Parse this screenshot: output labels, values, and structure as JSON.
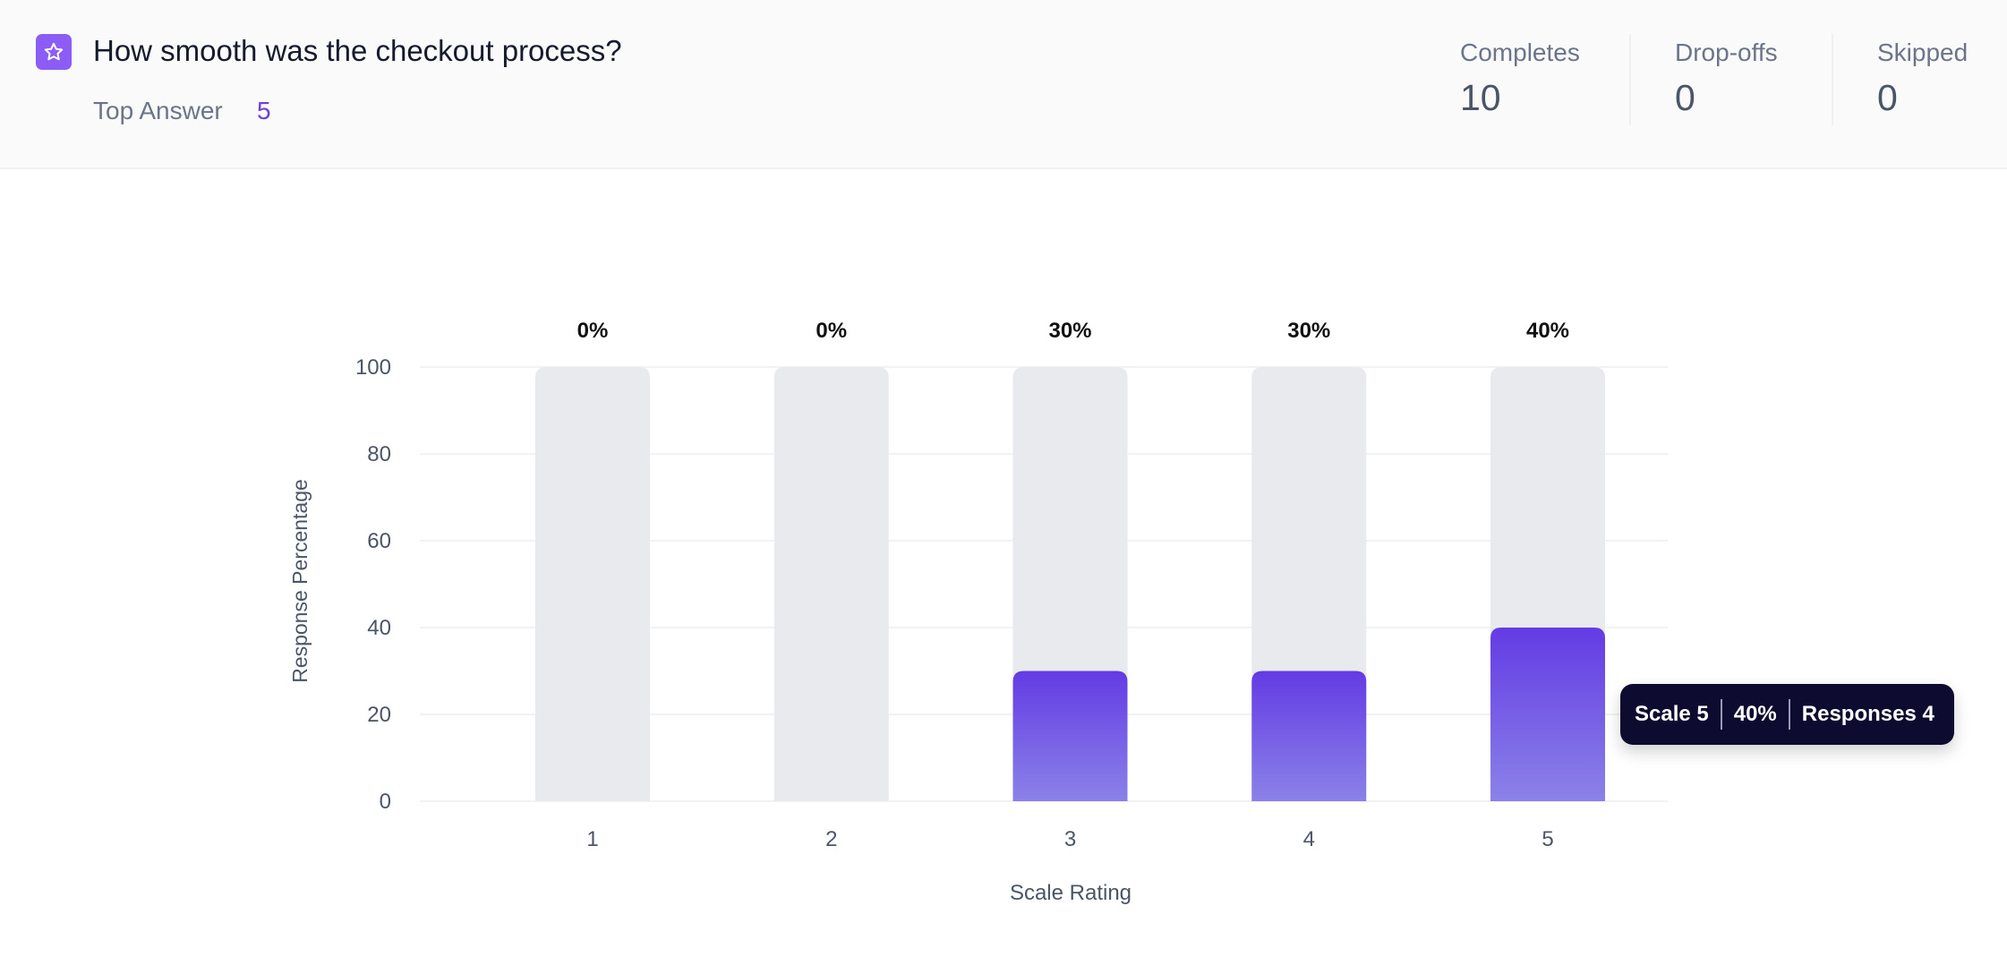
{
  "header": {
    "icon": "star-icon",
    "question": "How smooth was the checkout process?",
    "top_answer_label": "Top Answer",
    "top_answer_value": "5",
    "stats": [
      {
        "label": "Completes",
        "value": "10"
      },
      {
        "label": "Drop-offs",
        "value": "0"
      },
      {
        "label": "Skipped",
        "value": "0"
      }
    ]
  },
  "colors": {
    "accent": "#8b5cf6",
    "bar_top": "#633be4",
    "bar_bottom": "#8b82e8",
    "bar_track": "#e9eaee",
    "tooltip_bg": "#0e0b30"
  },
  "chart_data": {
    "type": "bar",
    "title": "",
    "xlabel": "Scale Rating",
    "ylabel": "Response Percentage",
    "categories": [
      "1",
      "2",
      "3",
      "4",
      "5"
    ],
    "values": [
      0,
      0,
      30,
      30,
      40
    ],
    "data_labels": [
      "0%",
      "0%",
      "30%",
      "30%",
      "40%"
    ],
    "yticks": [
      "0",
      "20",
      "40",
      "60",
      "80",
      "100"
    ],
    "ylim": [
      0,
      100
    ],
    "grid": true,
    "tooltip": {
      "scale": "Scale 5",
      "percent": "40%",
      "responses": "Responses 4"
    }
  }
}
